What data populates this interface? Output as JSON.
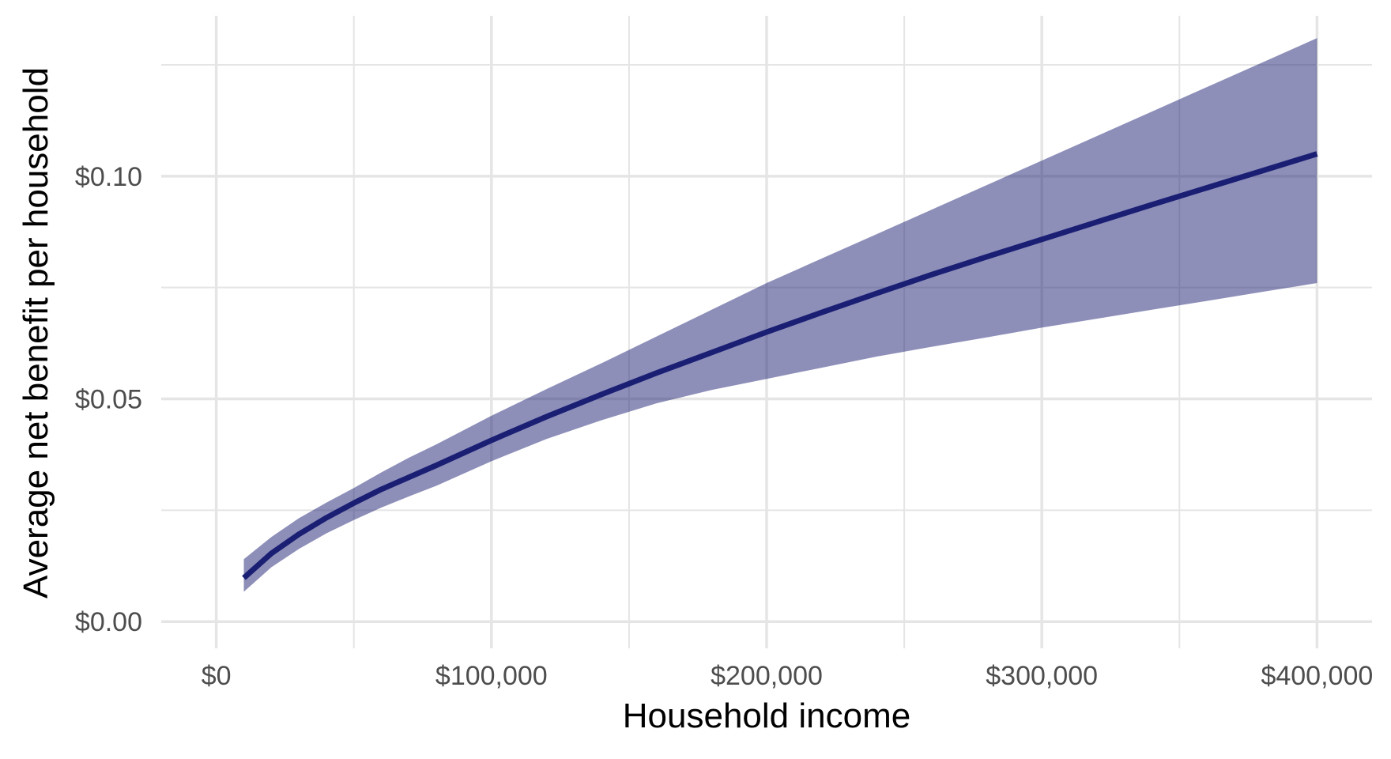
{
  "chart_data": {
    "type": "line",
    "title": "",
    "xlabel": "Household income",
    "ylabel": "Average net benefit per household",
    "xlim": [
      -20000,
      420000
    ],
    "ylim": [
      -0.006,
      0.136
    ],
    "x_ticks": [
      0,
      100000,
      200000,
      300000,
      400000
    ],
    "x_tick_labels": [
      "$0",
      "$100,000",
      "$200,000",
      "$300,000",
      "$400,000"
    ],
    "x_minor_ticks": [
      50000,
      150000,
      250000,
      350000
    ],
    "y_ticks": [
      0,
      0.05,
      0.1
    ],
    "y_tick_labels": [
      "$0.00",
      "$0.05",
      "$0.10"
    ],
    "y_minor_ticks": [
      0.025,
      0.075,
      0.125
    ],
    "grid": true,
    "legend": "none",
    "colors": {
      "line": "#1b1f74",
      "ribbon": "#1b1f74",
      "grid": "#e5e5e5",
      "tick_text": "#4d4d4d"
    },
    "series": [
      {
        "x": [
          10000,
          20000,
          30000,
          40000,
          50000,
          60000,
          70000,
          80000,
          100000,
          120000,
          140000,
          160000,
          180000,
          200000,
          220000,
          240000,
          260000,
          280000,
          300000,
          320000,
          340000,
          360000,
          380000,
          400000
        ],
        "y": [
          0.0098,
          0.0153,
          0.0196,
          0.0233,
          0.0266,
          0.0297,
          0.0324,
          0.0351,
          0.0407,
          0.046,
          0.051,
          0.0558,
          0.0604,
          0.065,
          0.0694,
          0.0737,
          0.0779,
          0.0819,
          0.0858,
          0.0897,
          0.0936,
          0.0974,
          0.1012,
          0.105
        ],
        "lower": [
          0.0067,
          0.0122,
          0.0163,
          0.0198,
          0.0228,
          0.0256,
          0.0281,
          0.0305,
          0.036,
          0.041,
          0.0452,
          0.049,
          0.052,
          0.0545,
          0.057,
          0.0595,
          0.0617,
          0.0638,
          0.066,
          0.068,
          0.07,
          0.072,
          0.074,
          0.076
        ],
        "upper": [
          0.014,
          0.019,
          0.0232,
          0.0267,
          0.03,
          0.0335,
          0.0368,
          0.0398,
          0.0462,
          0.0522,
          0.058,
          0.064,
          0.07,
          0.076,
          0.0815,
          0.087,
          0.0925,
          0.098,
          0.1035,
          0.109,
          0.1145,
          0.12,
          0.1255,
          0.131
        ]
      }
    ]
  }
}
